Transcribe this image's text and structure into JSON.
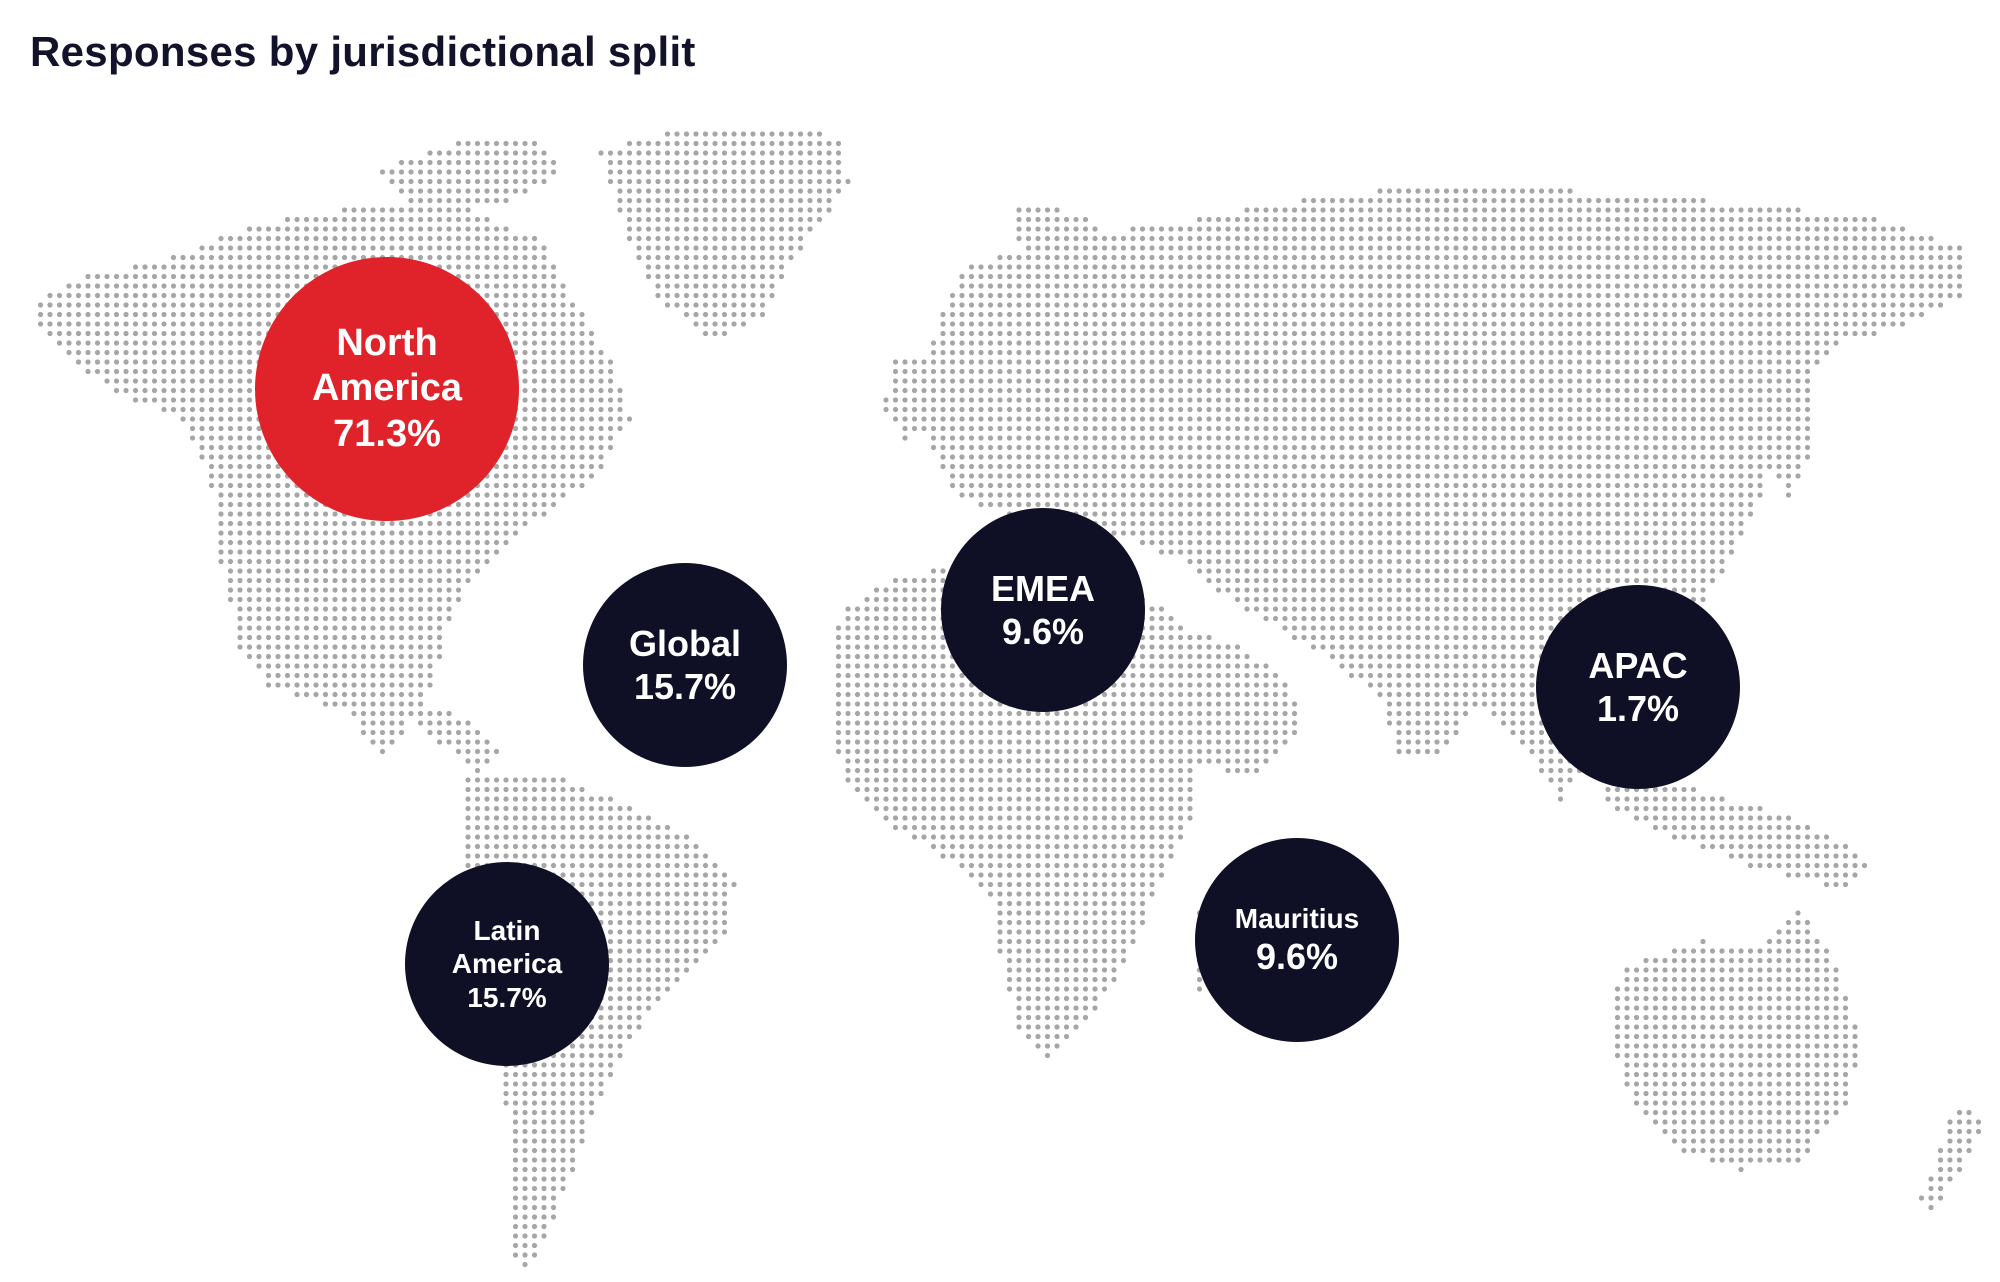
{
  "title": "Responses by jurisdictional split",
  "colors": {
    "dot": "#a6a6a6",
    "highlight": "#e0232a",
    "bubble": "#0f0f26",
    "text": "#12122a"
  },
  "regions": {
    "north_america": {
      "line1": "North",
      "line2": "America",
      "value": "71.3%"
    },
    "global": {
      "name": "Global",
      "value": "15.7%"
    },
    "emea": {
      "name": "EMEA",
      "value": "9.6%"
    },
    "apac": {
      "name": "APAC",
      "value": "1.7%"
    },
    "latin_america": {
      "line1": "Latin",
      "line2": "America",
      "value": "15.7%"
    },
    "mauritius": {
      "name": "Mauritius",
      "value": "9.6%"
    }
  }
}
